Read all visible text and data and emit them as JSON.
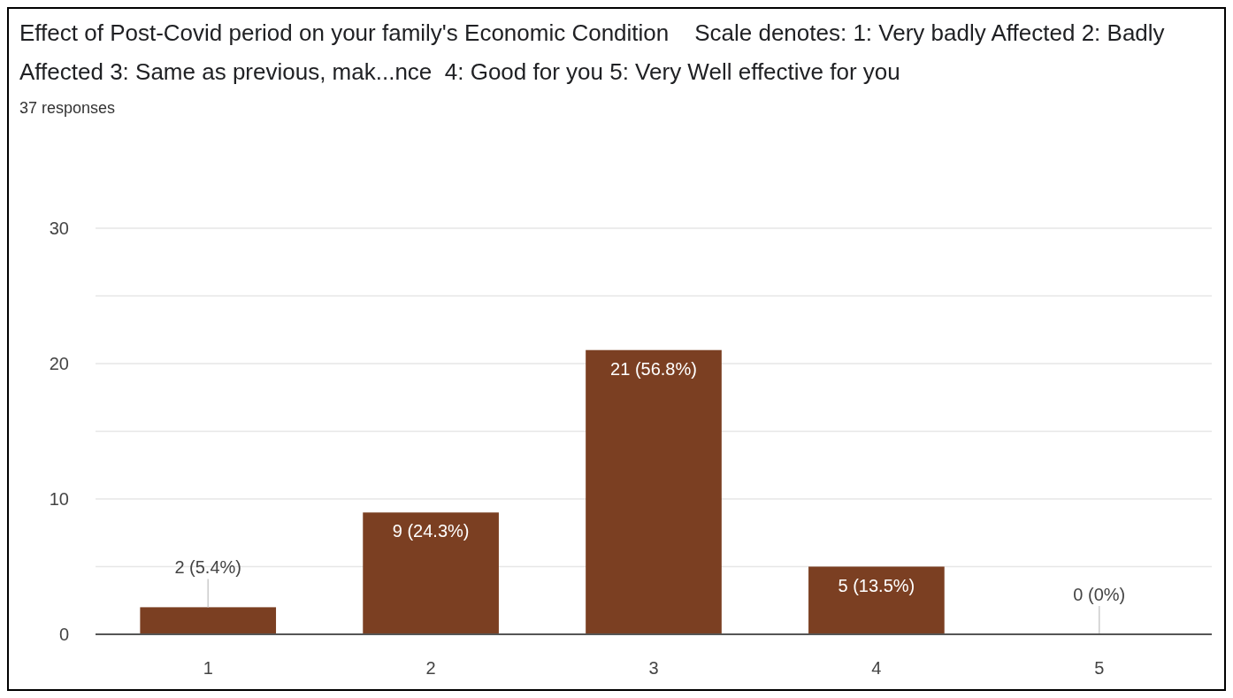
{
  "chart_data": {
    "type": "bar",
    "title": "Effect of Post-Covid period on your family's Economic Condition    Scale denotes: 1: Very badly Affected 2: Badly Affected 3: Same as previous, mak...nce  4: Good for you 5: Very Well effective for you",
    "subtitle": "37 responses",
    "categories": [
      "1",
      "2",
      "3",
      "4",
      "5"
    ],
    "values": [
      2,
      9,
      21,
      5,
      0
    ],
    "value_labels": [
      "2 (5.4%)",
      "9 (24.3%)",
      "21 (56.8%)",
      "5 (13.5%)",
      "0 (0%)"
    ],
    "color": "#7b3f22",
    "ylim": [
      0,
      30
    ],
    "yticks": [
      0,
      {
        "value": 5,
        "label": null
      },
      10,
      {
        "value": 15,
        "label": null
      },
      20,
      {
        "value": 25,
        "label": null
      },
      30
    ],
    "grid": "y"
  }
}
